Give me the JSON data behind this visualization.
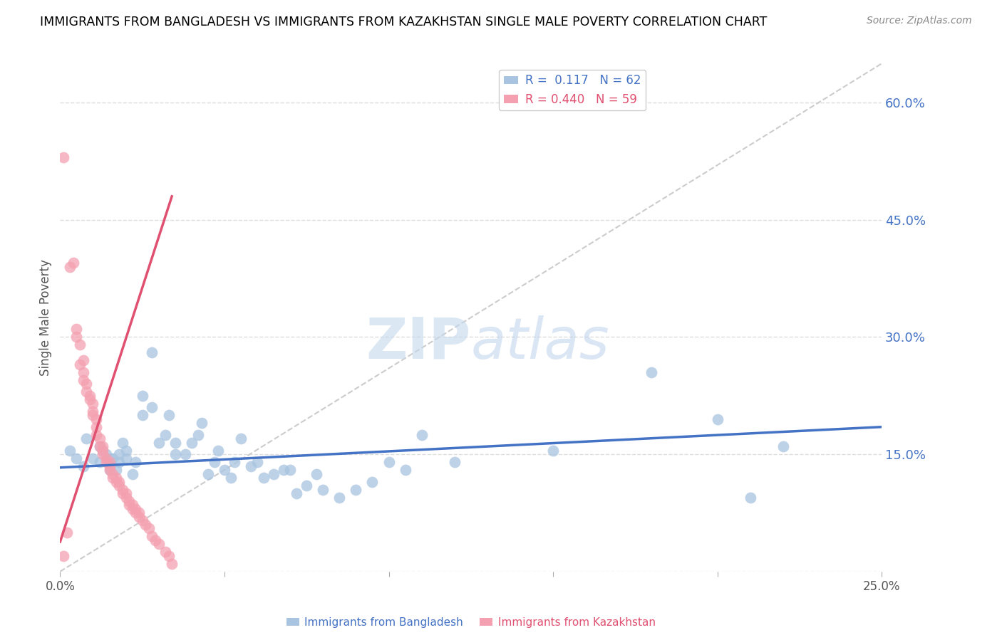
{
  "title": "IMMIGRANTS FROM BANGLADESH VS IMMIGRANTS FROM KAZAKHSTAN SINGLE MALE POVERTY CORRELATION CHART",
  "source": "Source: ZipAtlas.com",
  "ylabel": "Single Male Poverty",
  "legend_label1": "Immigrants from Bangladesh",
  "legend_label2": "Immigrants from Kazakhstan",
  "xlim": [
    0.0,
    0.25
  ],
  "ylim": [
    0.0,
    0.65
  ],
  "right_yticklabels": [
    "",
    "15.0%",
    "30.0%",
    "45.0%",
    "60.0%"
  ],
  "right_ytick_vals": [
    0.0,
    0.15,
    0.3,
    0.45,
    0.6
  ],
  "bottom_xticklabels": [
    "0.0%",
    "",
    "",
    "",
    "",
    "25.0%"
  ],
  "bottom_xtick_vals": [
    0.0,
    0.05,
    0.1,
    0.15,
    0.2,
    0.25
  ],
  "grid_color": "#dddddd",
  "bangladesh_color": "#a8c4e0",
  "kazakhstan_color": "#f4a0b0",
  "watermark": "ZIPatlas",
  "bangladesh_scatter": [
    [
      0.003,
      0.155
    ],
    [
      0.005,
      0.145
    ],
    [
      0.007,
      0.135
    ],
    [
      0.008,
      0.17
    ],
    [
      0.01,
      0.145
    ],
    [
      0.012,
      0.14
    ],
    [
      0.012,
      0.16
    ],
    [
      0.013,
      0.155
    ],
    [
      0.014,
      0.15
    ],
    [
      0.015,
      0.13
    ],
    [
      0.015,
      0.145
    ],
    [
      0.016,
      0.145
    ],
    [
      0.017,
      0.13
    ],
    [
      0.018,
      0.14
    ],
    [
      0.018,
      0.15
    ],
    [
      0.019,
      0.165
    ],
    [
      0.02,
      0.145
    ],
    [
      0.02,
      0.155
    ],
    [
      0.022,
      0.125
    ],
    [
      0.023,
      0.14
    ],
    [
      0.025,
      0.2
    ],
    [
      0.025,
      0.225
    ],
    [
      0.028,
      0.21
    ],
    [
      0.028,
      0.28
    ],
    [
      0.03,
      0.165
    ],
    [
      0.032,
      0.175
    ],
    [
      0.033,
      0.2
    ],
    [
      0.035,
      0.15
    ],
    [
      0.035,
      0.165
    ],
    [
      0.038,
      0.15
    ],
    [
      0.04,
      0.165
    ],
    [
      0.042,
      0.175
    ],
    [
      0.043,
      0.19
    ],
    [
      0.045,
      0.125
    ],
    [
      0.047,
      0.14
    ],
    [
      0.048,
      0.155
    ],
    [
      0.05,
      0.13
    ],
    [
      0.052,
      0.12
    ],
    [
      0.053,
      0.14
    ],
    [
      0.055,
      0.17
    ],
    [
      0.058,
      0.135
    ],
    [
      0.06,
      0.14
    ],
    [
      0.062,
      0.12
    ],
    [
      0.065,
      0.125
    ],
    [
      0.068,
      0.13
    ],
    [
      0.07,
      0.13
    ],
    [
      0.072,
      0.1
    ],
    [
      0.075,
      0.11
    ],
    [
      0.078,
      0.125
    ],
    [
      0.08,
      0.105
    ],
    [
      0.085,
      0.095
    ],
    [
      0.09,
      0.105
    ],
    [
      0.095,
      0.115
    ],
    [
      0.1,
      0.14
    ],
    [
      0.105,
      0.13
    ],
    [
      0.11,
      0.175
    ],
    [
      0.12,
      0.14
    ],
    [
      0.15,
      0.155
    ],
    [
      0.18,
      0.255
    ],
    [
      0.2,
      0.195
    ],
    [
      0.21,
      0.095
    ],
    [
      0.22,
      0.16
    ]
  ],
  "kazakhstan_scatter": [
    [
      0.001,
      0.53
    ],
    [
      0.003,
      0.39
    ],
    [
      0.004,
      0.395
    ],
    [
      0.005,
      0.31
    ],
    [
      0.005,
      0.3
    ],
    [
      0.006,
      0.265
    ],
    [
      0.006,
      0.29
    ],
    [
      0.007,
      0.27
    ],
    [
      0.007,
      0.255
    ],
    [
      0.007,
      0.245
    ],
    [
      0.008,
      0.23
    ],
    [
      0.008,
      0.24
    ],
    [
      0.009,
      0.225
    ],
    [
      0.009,
      0.22
    ],
    [
      0.01,
      0.215
    ],
    [
      0.01,
      0.205
    ],
    [
      0.01,
      0.2
    ],
    [
      0.011,
      0.195
    ],
    [
      0.011,
      0.185
    ],
    [
      0.011,
      0.175
    ],
    [
      0.012,
      0.17
    ],
    [
      0.012,
      0.16
    ],
    [
      0.013,
      0.16
    ],
    [
      0.013,
      0.155
    ],
    [
      0.013,
      0.15
    ],
    [
      0.014,
      0.145
    ],
    [
      0.014,
      0.14
    ],
    [
      0.015,
      0.14
    ],
    [
      0.015,
      0.135
    ],
    [
      0.015,
      0.13
    ],
    [
      0.016,
      0.125
    ],
    [
      0.016,
      0.12
    ],
    [
      0.017,
      0.12
    ],
    [
      0.017,
      0.115
    ],
    [
      0.018,
      0.115
    ],
    [
      0.018,
      0.11
    ],
    [
      0.019,
      0.105
    ],
    [
      0.019,
      0.1
    ],
    [
      0.02,
      0.1
    ],
    [
      0.02,
      0.095
    ],
    [
      0.021,
      0.09
    ],
    [
      0.021,
      0.085
    ],
    [
      0.022,
      0.085
    ],
    [
      0.022,
      0.08
    ],
    [
      0.023,
      0.08
    ],
    [
      0.023,
      0.075
    ],
    [
      0.024,
      0.075
    ],
    [
      0.024,
      0.07
    ],
    [
      0.025,
      0.065
    ],
    [
      0.026,
      0.06
    ],
    [
      0.027,
      0.055
    ],
    [
      0.028,
      0.045
    ],
    [
      0.029,
      0.04
    ],
    [
      0.03,
      0.035
    ],
    [
      0.032,
      0.025
    ],
    [
      0.033,
      0.02
    ],
    [
      0.034,
      0.01
    ],
    [
      0.002,
      0.05
    ],
    [
      0.001,
      0.02
    ]
  ],
  "bangladesh_line": [
    [
      0.0,
      0.133
    ],
    [
      0.25,
      0.185
    ]
  ],
  "kazakhstan_line": [
    [
      0.0,
      0.038
    ],
    [
      0.034,
      0.48
    ]
  ],
  "diagonal_line": [
    [
      0.0,
      0.0
    ],
    [
      0.25,
      0.65
    ]
  ]
}
